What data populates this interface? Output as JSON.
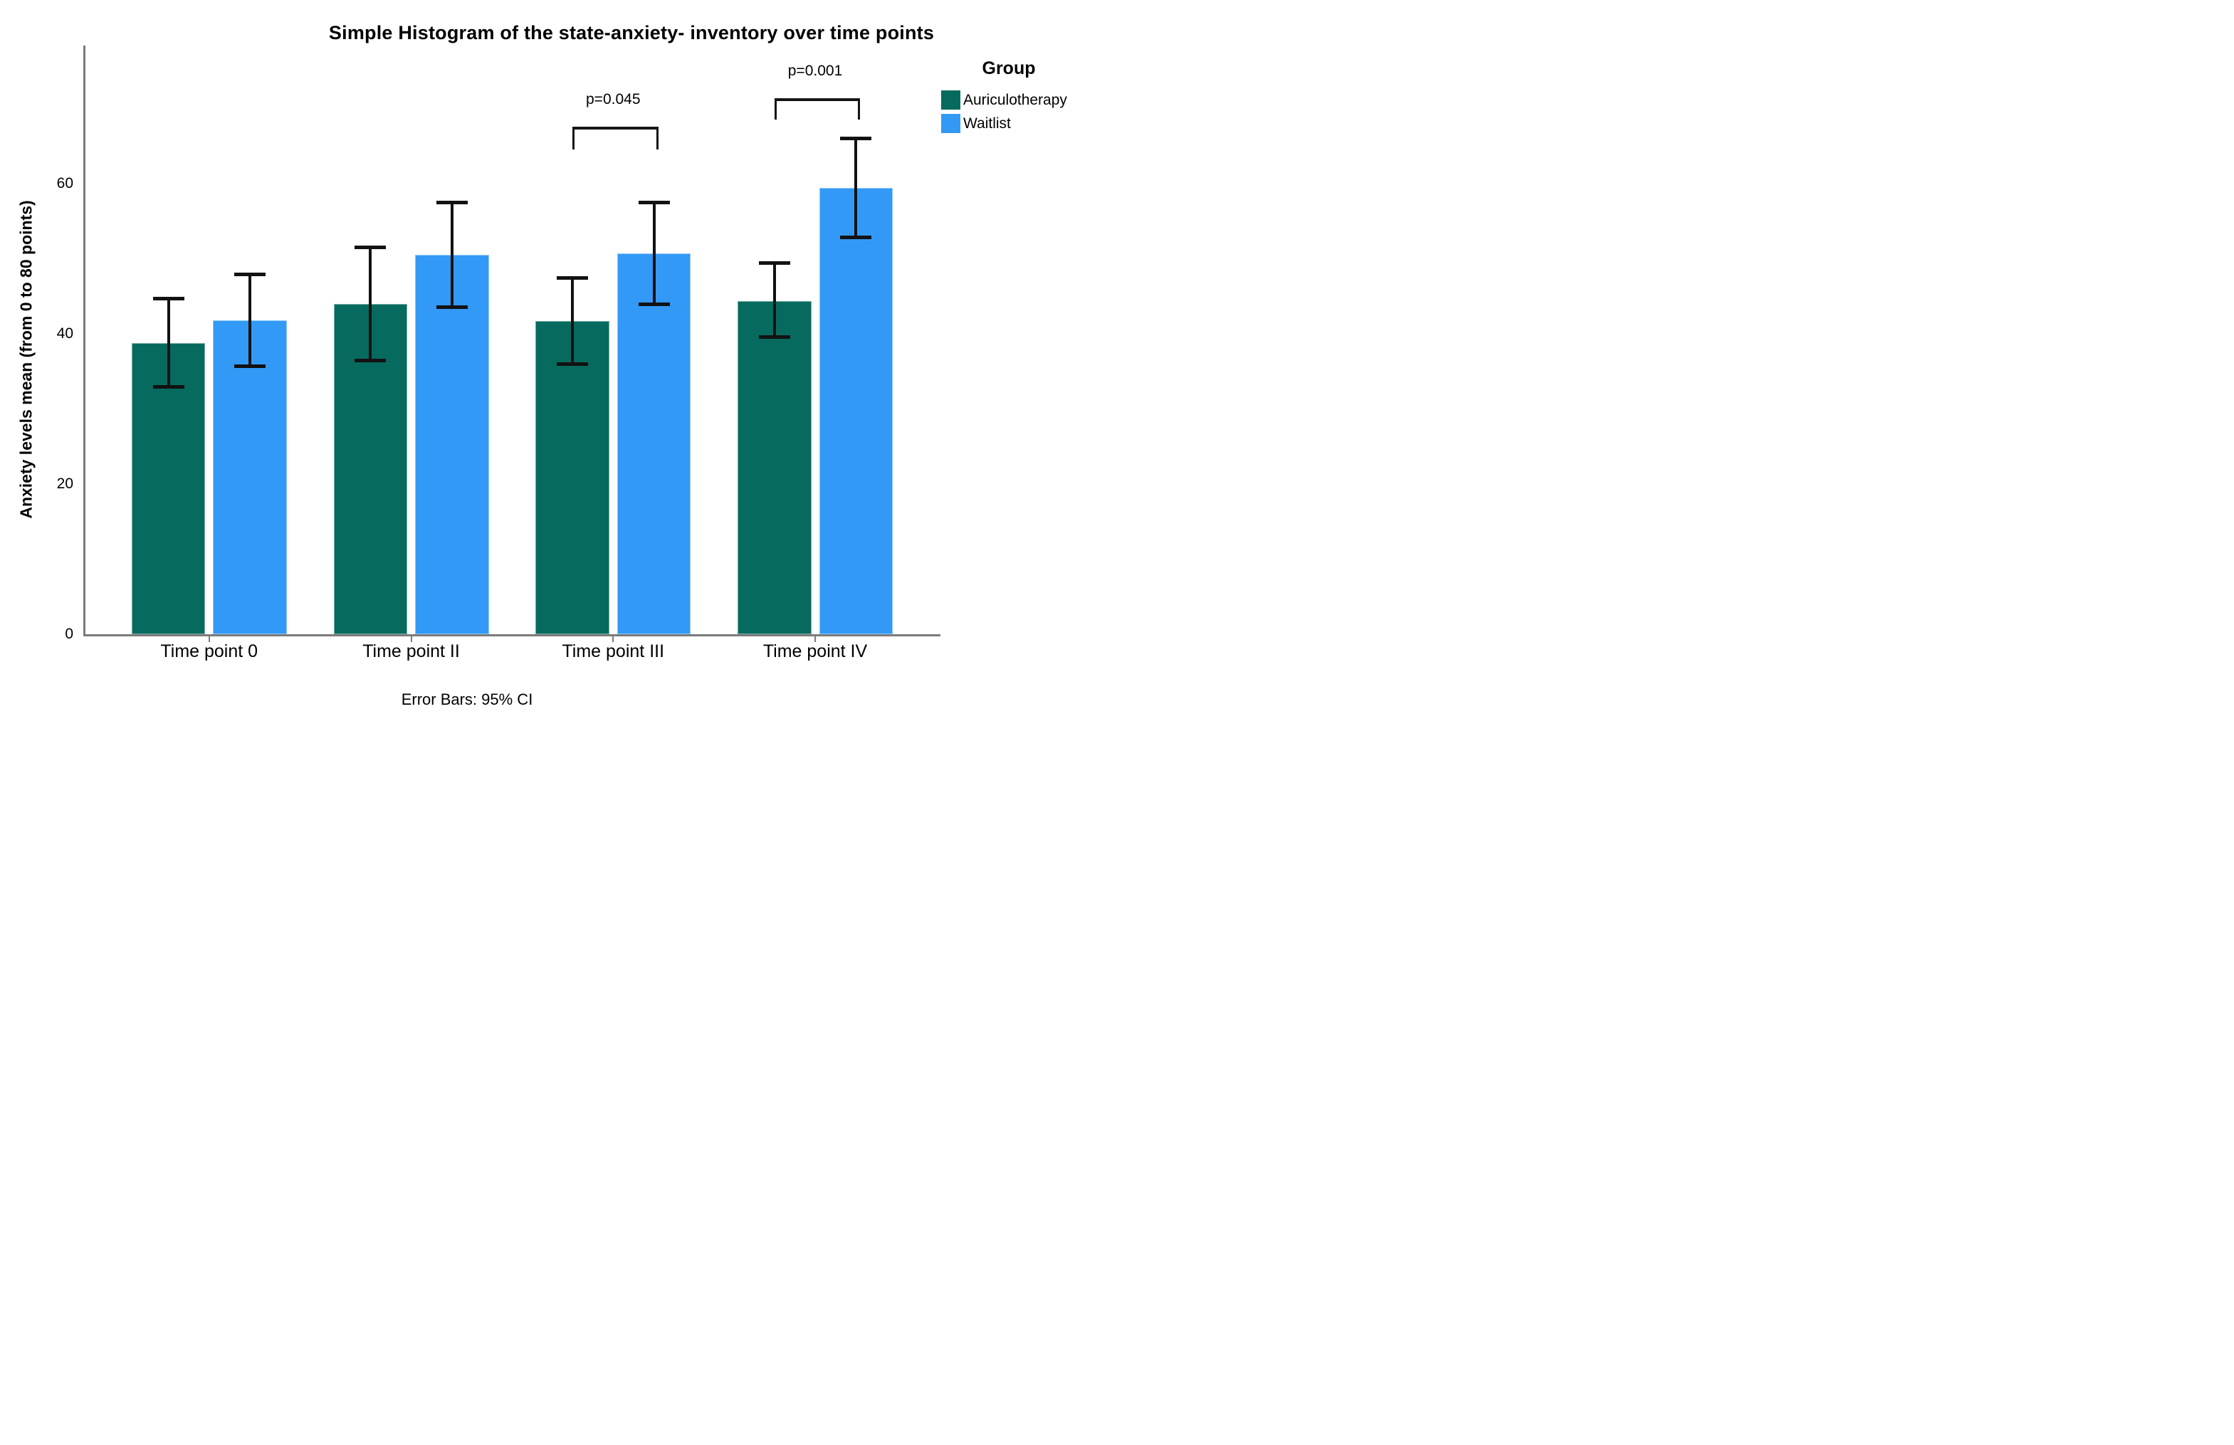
{
  "title": "Simple Histogram of the state-anxiety- inventory over time points",
  "caption": "Error Bars: 95% CI",
  "legend": {
    "title": "Group",
    "entries": [
      "Auriculotherapy",
      "Waitlist"
    ]
  },
  "y_axis": {
    "label": "Anxiety levels mean (from 0 to 80 points)",
    "ticks": [
      0,
      20,
      40,
      60
    ]
  },
  "chart_data": {
    "type": "bar",
    "title": "Simple Histogram of the state-anxiety- inventory over time points",
    "xlabel": "",
    "ylabel": "Anxiety levels mean (from 0 to 80 points)",
    "categories": [
      "Time point 0",
      "Time point II",
      "Time point III",
      "Time point IV"
    ],
    "y_ticks": [
      0,
      20,
      40,
      60
    ],
    "ylim": [
      0,
      78
    ],
    "grid": false,
    "legend_position": "right",
    "legend_title": "Group",
    "error_bars": "95% CI",
    "series": [
      {
        "name": "Auriculotherapy",
        "color": "#076A5E",
        "values": [
          38.8,
          44.0,
          41.7,
          44.4
        ],
        "ci_low": [
          32.9,
          36.4,
          35.9,
          39.5
        ],
        "ci_high": [
          44.7,
          51.6,
          47.5,
          49.5
        ]
      },
      {
        "name": "Waitlist",
        "color": "#3399F6",
        "values": [
          41.8,
          50.5,
          50.7,
          59.4
        ],
        "ci_low": [
          35.6,
          43.5,
          43.9,
          52.8
        ],
        "ci_high": [
          48.0,
          57.5,
          57.5,
          66.1
        ]
      }
    ],
    "annotations": [
      {
        "category_index": 2,
        "label": "p=0.045",
        "line_value": 67.6,
        "drop": 2.7
      },
      {
        "category_index": 3,
        "label": "p=0.001",
        "line_value": 71.4,
        "drop": 2.5
      }
    ]
  }
}
